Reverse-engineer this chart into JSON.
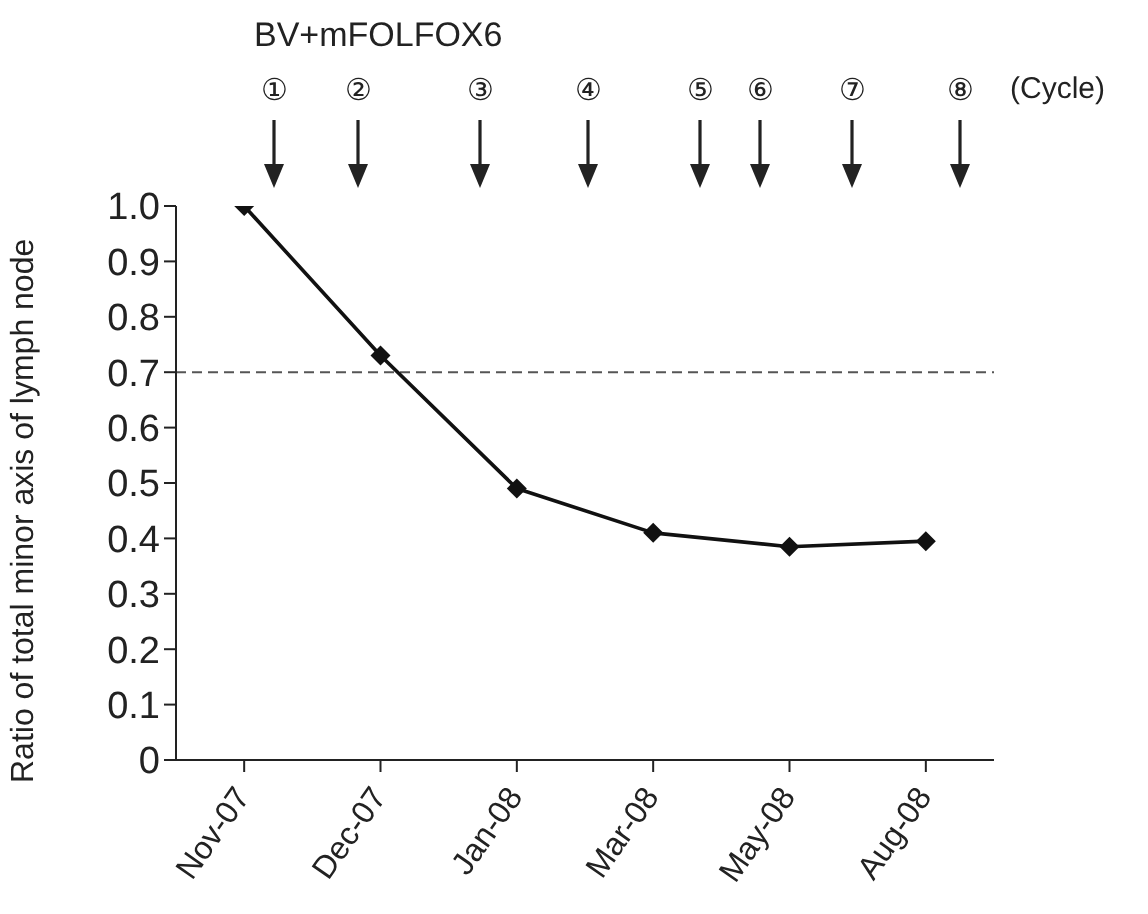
{
  "chart_data": {
    "type": "line",
    "categories": [
      "Nov-07",
      "Dec-07",
      "Jan-08",
      "Mar-08",
      "May-08",
      "Aug-08"
    ],
    "series": [
      {
        "color": "#111111",
        "values": [
          1.0,
          0.73,
          0.49,
          0.41,
          0.385,
          0.395
        ]
      }
    ],
    "ylabel": "Ratio of total minor axis of lymph node",
    "ylim": [
      0,
      1
    ],
    "yticks": [
      0,
      0.1,
      0.2,
      0.3,
      0.4,
      0.5,
      0.6,
      0.7,
      0.8,
      0.9,
      {
        "value": 1,
        "label": "1.0"
      }
    ],
    "ref_lines": [
      {
        "axis": "y",
        "value": 0.7,
        "color": "#555555",
        "line_style": "dashed"
      }
    ],
    "marker": "diamond",
    "line_style": "solid",
    "grid": false,
    "legend": false,
    "annotations": [
      "BV+mFOLFOX6",
      "①",
      "②",
      "③",
      "④",
      "⑤",
      "⑥",
      "⑦",
      "⑧",
      "(Cycle)"
    ]
  }
}
